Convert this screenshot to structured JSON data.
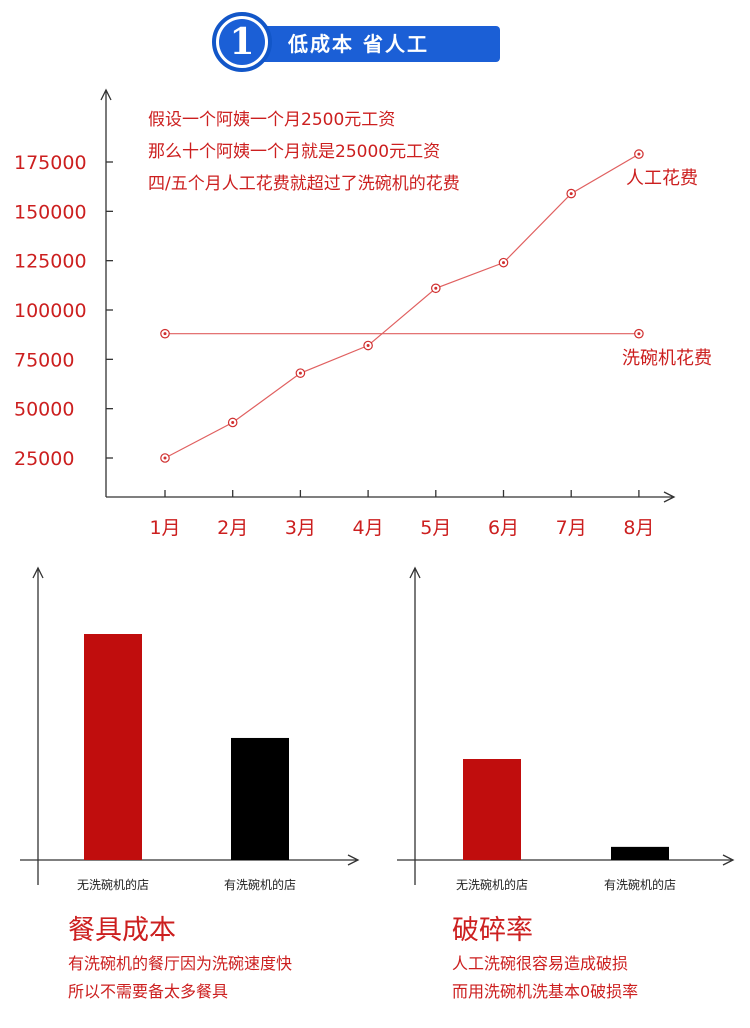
{
  "banner": {
    "number": "1",
    "title": "低成本 省人工"
  },
  "colors": {
    "accent_red": "#cc1f1f",
    "bar_red": "#c00d0d",
    "bar_black": "#000000",
    "banner_blue": "#1b5fd6"
  },
  "chart_data": [
    {
      "type": "line",
      "x": [
        "1月",
        "2月",
        "3月",
        "4月",
        "5月",
        "6月",
        "7月",
        "8月"
      ],
      "yticks": [
        "25000",
        "50000",
        "75000",
        "100000",
        "125000",
        "150000",
        "175000"
      ],
      "ylim": [
        10000,
        190000
      ],
      "series": [
        {
          "name": "人工花费",
          "values": [
            25000,
            43000,
            68000,
            82000,
            111000,
            124000,
            159000,
            179000
          ]
        },
        {
          "name": "洗碗机花费",
          "values": [
            88000,
            88000,
            88000,
            88000,
            88000,
            88000,
            88000,
            88000
          ]
        }
      ],
      "annotations": [
        "假设一个阿姨一个月2500元工资",
        "那么十个阿姨一个月就是25000元工资",
        "四/五个月人工花费就超过了洗碗机的花费"
      ]
    },
    {
      "type": "bar",
      "title": "餐具成本",
      "categories": [
        "无洗碗机的店",
        "有洗碗机的店"
      ],
      "values": [
        100,
        54
      ],
      "colors": [
        "#c00d0d",
        "#000000"
      ],
      "description": [
        "有洗碗机的餐厅因为洗碗速度快",
        "所以不需要备太多餐具"
      ]
    },
    {
      "type": "bar",
      "title": "破碎率",
      "categories": [
        "无洗碗机的店",
        "有洗碗机的店"
      ],
      "values": [
        100,
        13
      ],
      "colors": [
        "#c00d0d",
        "#000000"
      ],
      "description": [
        "人工洗碗很容易造成破损",
        "而用洗碗机洗基本0破损率"
      ]
    }
  ]
}
